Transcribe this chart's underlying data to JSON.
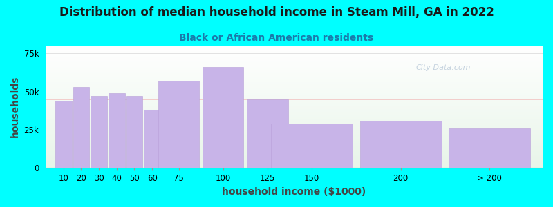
{
  "title": "Distribution of median household income in Steam Mill, GA in 2022",
  "subtitle": "Black or African American residents",
  "xlabel": "household income ($1000)",
  "ylabel": "households",
  "background_color": "#00FFFF",
  "bar_color": "#C8B4E8",
  "bar_edge_color": "#b8a0d8",
  "categories": [
    "10",
    "20",
    "30",
    "40",
    "50",
    "60",
    "75",
    "100",
    "125",
    "150",
    "200",
    "> 200"
  ],
  "positions": [
    10,
    20,
    30,
    40,
    50,
    60,
    75,
    100,
    125,
    150,
    200,
    250
  ],
  "widths": [
    10,
    10,
    10,
    10,
    10,
    10,
    25,
    25,
    25,
    50,
    50,
    50
  ],
  "values": [
    44000,
    53000,
    47000,
    49000,
    47000,
    38000,
    57000,
    66000,
    45000,
    29000,
    31000,
    26000
  ],
  "ylim": [
    0,
    80000
  ],
  "xlim": [
    0,
    280
  ],
  "yticks": [
    0,
    25000,
    50000,
    75000
  ],
  "ytick_labels": [
    "0",
    "25k",
    "50k",
    "75k"
  ],
  "xtick_positions": [
    10,
    20,
    30,
    40,
    50,
    60,
    75,
    100,
    125,
    150,
    200,
    250
  ],
  "xtick_labels": [
    "10",
    "20",
    "30",
    "40",
    "50",
    "60",
    "75",
    "100",
    "125",
    "150",
    "200",
    "> 200"
  ],
  "title_fontsize": 12,
  "subtitle_fontsize": 10,
  "axis_label_fontsize": 10,
  "tick_fontsize": 8.5,
  "watermark_text": "City-Data.com"
}
